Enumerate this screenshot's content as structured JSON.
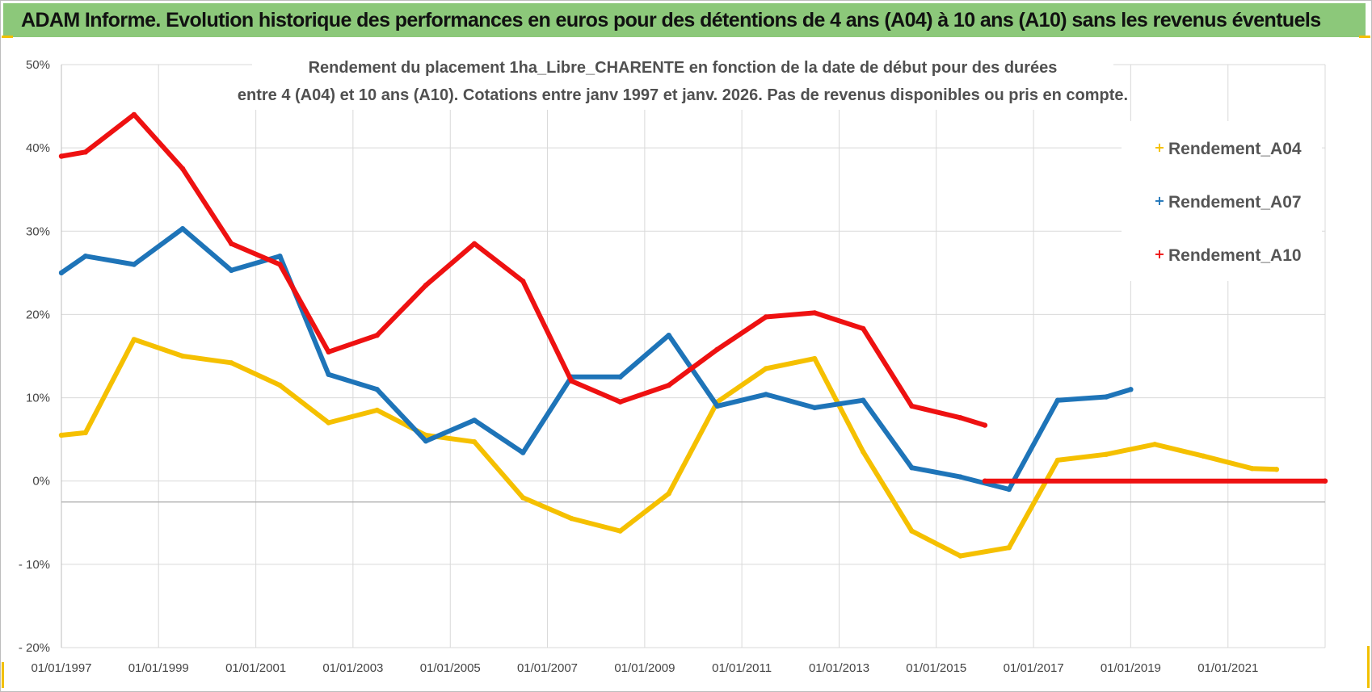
{
  "header": {
    "banner": "ADAM Informe. Evolution historique des performances en euros pour des détentions de 4 ans (A04) à 10 ans (A10) sans les revenus éventuels"
  },
  "colors": {
    "banner_bg": "#8cc87a",
    "A04": "#f5c000",
    "A07": "#1e74b8",
    "A10": "#ee1111",
    "grid": "#d9d9d9"
  },
  "chart_data": {
    "type": "line",
    "title_lines": [
      "Rendement du placement 1ha_Libre_CHARENTE en fonction de la date de début pour des durées",
      "entre 4 (A04) et 10 ans (A10).  Cotations entre janv 1997 et janv. 2026. Pas de revenus disponibles ou pris en compte."
    ],
    "xlabel": "",
    "ylabel": "",
    "x_ticks": [
      "01/01/1997",
      "01/01/1999",
      "01/01/2001",
      "01/01/2003",
      "01/01/2005",
      "01/01/2007",
      "01/01/2009",
      "01/01/2011",
      "01/01/2013",
      "01/01/2015",
      "01/01/2017",
      "01/01/2019",
      "01/01/2021"
    ],
    "xlim": [
      "1997-01-01",
      "2023-01-01"
    ],
    "y_ticks": [
      "50%",
      "40%",
      "30%",
      "20%",
      "10%",
      "0%",
      "- 10%",
      "- 20%"
    ],
    "ylim": [
      -20,
      50
    ],
    "grid": true,
    "legend_position": "top-right",
    "series": [
      {
        "name": "Rendement_A04",
        "color": "#f5c000",
        "points": [
          [
            "1997-01-01",
            5.5
          ],
          [
            "1997-07-01",
            5.8
          ],
          [
            "1998-07-01",
            17
          ],
          [
            "1999-07-01",
            15
          ],
          [
            "2000-07-01",
            14.2
          ],
          [
            "2001-07-01",
            11.5
          ],
          [
            "2002-07-01",
            7
          ],
          [
            "2003-07-01",
            8.5
          ],
          [
            "2004-07-01",
            5.5
          ],
          [
            "2005-07-01",
            4.7
          ],
          [
            "2006-07-01",
            -2
          ],
          [
            "2007-07-01",
            -4.5
          ],
          [
            "2008-07-01",
            -6
          ],
          [
            "2009-07-01",
            -1.5
          ],
          [
            "2010-07-01",
            9.5
          ],
          [
            "2011-07-01",
            13.5
          ],
          [
            "2012-07-01",
            14.7
          ],
          [
            "2013-07-01",
            3.5
          ],
          [
            "2014-07-01",
            -6
          ],
          [
            "2015-07-01",
            -9
          ],
          [
            "2016-07-01",
            -8
          ],
          [
            "2017-07-01",
            2.5
          ],
          [
            "2018-07-01",
            3.2
          ],
          [
            "2019-07-01",
            4.4
          ],
          [
            "2020-07-01",
            3
          ],
          [
            "2021-07-01",
            1.5
          ],
          [
            "2022-01-01",
            1.4
          ]
        ]
      },
      {
        "name": "Rendement_A07",
        "color": "#1e74b8",
        "points": [
          [
            "1997-01-01",
            25
          ],
          [
            "1997-07-01",
            27
          ],
          [
            "1998-07-01",
            26
          ],
          [
            "1999-07-01",
            30.3
          ],
          [
            "2000-07-01",
            25.3
          ],
          [
            "2001-07-01",
            27
          ],
          [
            "2002-07-01",
            12.8
          ],
          [
            "2003-07-01",
            11
          ],
          [
            "2004-07-01",
            4.8
          ],
          [
            "2005-07-01",
            7.3
          ],
          [
            "2006-07-01",
            3.4
          ],
          [
            "2007-07-01",
            12.5
          ],
          [
            "2008-07-01",
            12.5
          ],
          [
            "2009-07-01",
            17.5
          ],
          [
            "2010-07-01",
            9
          ],
          [
            "2011-07-01",
            10.4
          ],
          [
            "2012-07-01",
            8.8
          ],
          [
            "2013-07-01",
            9.7
          ],
          [
            "2014-07-01",
            1.6
          ],
          [
            "2015-07-01",
            0.5
          ],
          [
            "2016-07-01",
            -1
          ],
          [
            "2017-07-01",
            9.7
          ],
          [
            "2018-07-01",
            10.1
          ],
          [
            "2019-01-01",
            11
          ]
        ]
      },
      {
        "name": "Rendement_A10",
        "color": "#ee1111",
        "points": [
          [
            "1997-01-01",
            39
          ],
          [
            "1997-07-01",
            39.5
          ],
          [
            "1998-07-01",
            44
          ],
          [
            "1999-07-01",
            37.5
          ],
          [
            "2000-07-01",
            28.5
          ],
          [
            "2001-07-01",
            26
          ],
          [
            "2002-07-01",
            15.5
          ],
          [
            "2003-07-01",
            17.5
          ],
          [
            "2004-07-01",
            23.5
          ],
          [
            "2005-07-01",
            28.5
          ],
          [
            "2006-07-01",
            24
          ],
          [
            "2007-07-01",
            12
          ],
          [
            "2008-07-01",
            9.5
          ],
          [
            "2009-07-01",
            11.5
          ],
          [
            "2010-07-01",
            15.8
          ],
          [
            "2011-07-01",
            19.7
          ],
          [
            "2012-07-01",
            20.2
          ],
          [
            "2013-07-01",
            18.3
          ],
          [
            "2014-07-01",
            9
          ],
          [
            "2015-07-01",
            7.6
          ],
          [
            "2016-01-01",
            6.7
          ]
        ]
      },
      {
        "name": "",
        "legend": false,
        "color": "#ee1111",
        "points": [
          [
            "2016-01-01",
            0
          ],
          [
            "2023-01-01",
            0
          ]
        ]
      }
    ]
  }
}
